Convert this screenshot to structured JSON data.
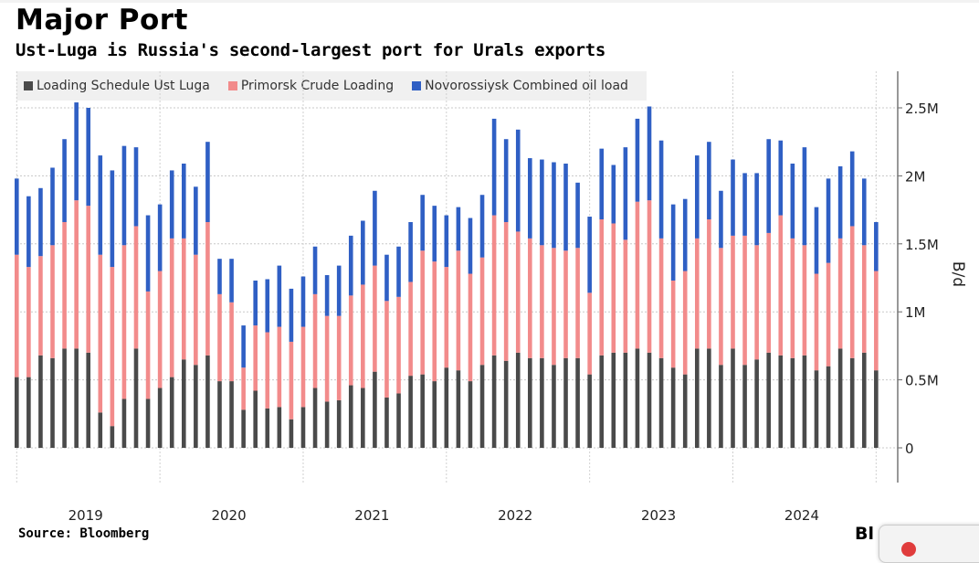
{
  "title": "Major Port",
  "subtitle": "Ust-Luga is Russia's second-largest port for Urals exports",
  "source": "Source: Bloomberg",
  "logo_text": "Bloomberg",
  "logo_visible": "Bl",
  "chart_data": {
    "type": "bar",
    "stacked": true,
    "title": "Major Port",
    "subtitle": "Ust-Luga is Russia's second-largest port for Urals exports",
    "xlabel": "",
    "ylabel": "B/d",
    "ylim": [
      0,
      2.8
    ],
    "y_unit": "million barrels per day",
    "yticks": [
      0,
      0.5,
      1,
      1.5,
      2,
      2.5
    ],
    "ytick_labels": [
      "0",
      "0.5M",
      "1M",
      "1.5M",
      "2M",
      "2.5M"
    ],
    "x_start": "2019-01",
    "x_end": "2025-01",
    "frequency": "monthly",
    "xtick_labels": [
      "2019",
      "2020",
      "2021",
      "2022",
      "2023",
      "2024"
    ],
    "legend_position": "top-left",
    "grid": true,
    "series": [
      {
        "name": "Loading Schedule Ust Luga",
        "color": "#4a4a4a",
        "values": [
          0.52,
          0.52,
          0.68,
          0.66,
          0.73,
          0.73,
          0.7,
          0.26,
          0.16,
          0.36,
          0.73,
          0.36,
          0.44,
          0.52,
          0.65,
          0.61,
          0.68,
          0.49,
          0.49,
          0.28,
          0.42,
          0.29,
          0.3,
          0.21,
          0.3,
          0.44,
          0.34,
          0.35,
          0.46,
          0.44,
          0.56,
          0.37,
          0.4,
          0.53,
          0.54,
          0.49,
          0.59,
          0.57,
          0.49,
          0.61,
          0.68,
          0.64,
          0.7,
          0.66,
          0.66,
          0.61,
          0.66,
          0.66,
          0.54,
          0.68,
          0.7,
          0.7,
          0.73,
          0.7,
          0.66,
          0.59,
          0.54,
          0.73,
          0.73,
          0.61,
          0.73,
          0.61,
          0.65,
          0.7,
          0.68,
          0.66,
          0.68,
          0.57,
          0.6,
          0.73,
          0.66,
          0.7,
          0.57
        ]
      },
      {
        "name": "Primorsk Crude Loading",
        "color": "#f28b8b",
        "values": [
          0.9,
          0.81,
          0.73,
          0.83,
          0.93,
          1.09,
          1.08,
          1.16,
          1.17,
          1.13,
          0.9,
          0.79,
          0.86,
          1.02,
          0.89,
          0.81,
          0.98,
          0.64,
          0.58,
          0.31,
          0.48,
          0.56,
          0.59,
          0.57,
          0.59,
          0.69,
          0.63,
          0.62,
          0.66,
          0.76,
          0.78,
          0.71,
          0.71,
          0.69,
          0.91,
          0.88,
          0.74,
          0.88,
          0.79,
          0.79,
          1.03,
          1.02,
          0.89,
          0.88,
          0.83,
          0.86,
          0.79,
          0.81,
          0.6,
          1.0,
          0.95,
          0.83,
          1.08,
          1.12,
          0.88,
          0.64,
          0.76,
          0.81,
          0.95,
          0.86,
          0.83,
          0.95,
          0.84,
          0.88,
          1.03,
          0.88,
          0.81,
          0.71,
          0.76,
          0.81,
          0.97,
          0.79,
          0.73
        ]
      },
      {
        "name": "Novorossiysk Combined oil load",
        "color": "#2f5fc4",
        "values": [
          0.56,
          0.52,
          0.5,
          0.57,
          0.61,
          0.72,
          0.72,
          0.73,
          0.71,
          0.73,
          0.58,
          0.56,
          0.49,
          0.5,
          0.55,
          0.5,
          0.59,
          0.26,
          0.32,
          0.31,
          0.33,
          0.39,
          0.45,
          0.39,
          0.37,
          0.35,
          0.3,
          0.37,
          0.44,
          0.47,
          0.55,
          0.34,
          0.37,
          0.44,
          0.41,
          0.41,
          0.38,
          0.32,
          0.41,
          0.46,
          0.71,
          0.61,
          0.75,
          0.59,
          0.63,
          0.63,
          0.64,
          0.48,
          0.56,
          0.52,
          0.43,
          0.68,
          0.61,
          0.69,
          0.72,
          0.56,
          0.53,
          0.61,
          0.57,
          0.42,
          0.56,
          0.46,
          0.53,
          0.69,
          0.55,
          0.55,
          0.72,
          0.49,
          0.62,
          0.53,
          0.55,
          0.49,
          0.36
        ]
      }
    ]
  }
}
